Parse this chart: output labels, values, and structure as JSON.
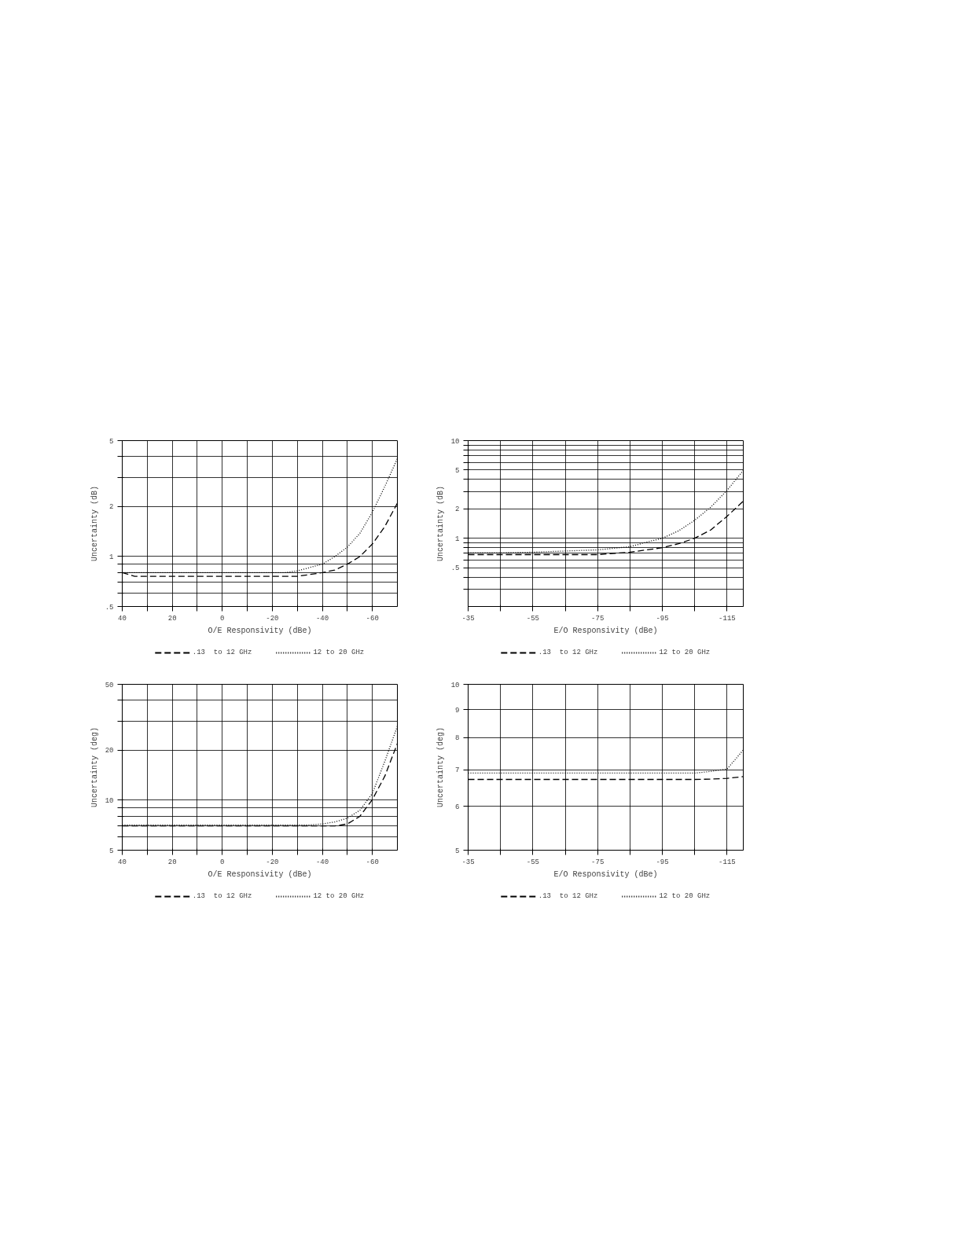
{
  "chart_data": [
    {
      "type": "line",
      "xlabel": "O/E Responsivity (dBe)",
      "ylabel": "Uncertainty (dB)",
      "log": "y",
      "grid": true,
      "legend": "bottom",
      "xlim": [
        40,
        -70
      ],
      "xticks": [
        40,
        {
          "value": 30,
          "label": null
        },
        20,
        {
          "value": 10,
          "label": null
        },
        0,
        {
          "value": -10,
          "label": null
        },
        -20,
        {
          "value": -30,
          "label": null
        },
        -40,
        {
          "value": -50,
          "label": null
        },
        -60
      ],
      "ylim": [
        0.5,
        5
      ],
      "yticks": [
        {
          "value": 0.5,
          "label": ".5"
        },
        {
          "value": 0.6,
          "label": null
        },
        {
          "value": 0.7,
          "label": null
        },
        {
          "value": 0.8,
          "label": null
        },
        {
          "value": 0.9,
          "label": null
        },
        1,
        2,
        {
          "value": 3,
          "label": null
        },
        {
          "value": 4,
          "label": null
        },
        5
      ],
      "series": [
        {
          "name": ".13  to 12 GHz",
          "color": "#000000",
          "line_style": "dashed",
          "x": [
            40,
            35,
            30,
            20,
            10,
            0,
            -10,
            -20,
            -30,
            -40,
            -45,
            -50,
            -55,
            -60,
            -65,
            -70
          ],
          "values": [
            0.8,
            0.76,
            0.76,
            0.76,
            0.76,
            0.76,
            0.76,
            0.76,
            0.76,
            0.8,
            0.83,
            0.9,
            1.0,
            1.19,
            1.52,
            2.1
          ]
        },
        {
          "name": "12 to 20 GHz",
          "color": "#000000",
          "line_style": "dotted",
          "x": [
            40,
            30,
            20,
            10,
            0,
            -10,
            -20,
            -25,
            -30,
            -40,
            -45,
            -50,
            -55,
            -60,
            -65,
            -70
          ],
          "values": [
            0.8,
            0.8,
            0.8,
            0.8,
            0.8,
            0.8,
            0.8,
            0.8,
            0.82,
            0.9,
            1.0,
            1.14,
            1.38,
            1.85,
            2.65,
            3.9
          ]
        }
      ]
    },
    {
      "type": "line",
      "xlabel": "E/O Responsivity (dBe)",
      "ylabel": "Uncertainty (dB)",
      "log": "y",
      "grid": true,
      "legend": "bottom",
      "xlim": [
        -35,
        -120
      ],
      "xticks": [
        -35,
        {
          "value": -45,
          "label": null
        },
        -55,
        {
          "value": -65,
          "label": null
        },
        -75,
        {
          "value": -85,
          "label": null
        },
        -95,
        {
          "value": -105,
          "label": null
        },
        -115
      ],
      "ylim": [
        0.2,
        10
      ],
      "yticks": [
        {
          "value": 0.3,
          "label": null
        },
        {
          "value": 0.4,
          "label": null
        },
        {
          "value": 0.5,
          "label": ".5"
        },
        {
          "value": 0.6,
          "label": null
        },
        {
          "value": 0.7,
          "label": null
        },
        {
          "value": 0.8,
          "label": null
        },
        {
          "value": 0.9,
          "label": null
        },
        1,
        2,
        {
          "value": 3,
          "label": null
        },
        {
          "value": 4,
          "label": null
        },
        5,
        {
          "value": 6,
          "label": null
        },
        {
          "value": 7,
          "label": null
        },
        {
          "value": 8,
          "label": null
        },
        {
          "value": 9,
          "label": null
        },
        10
      ],
      "series": [
        {
          "name": ".13  to 12 GHz",
          "color": "#000000",
          "line_style": "dashed",
          "x": [
            -35,
            -45,
            -55,
            -65,
            -75,
            -85,
            -95,
            -100,
            -105,
            -110,
            -115,
            -120
          ],
          "values": [
            0.68,
            0.68,
            0.68,
            0.68,
            0.68,
            0.72,
            0.8,
            0.88,
            1.0,
            1.22,
            1.68,
            2.4
          ]
        },
        {
          "name": "12 to 20 GHz",
          "color": "#000000",
          "line_style": "dotted",
          "x": [
            -35,
            -45,
            -55,
            -65,
            -75,
            -85,
            -90,
            -95,
            -100,
            -105,
            -110,
            -115,
            -120
          ],
          "values": [
            0.71,
            0.71,
            0.72,
            0.74,
            0.76,
            0.82,
            0.91,
            1.0,
            1.19,
            1.53,
            2.09,
            3.1,
            4.95
          ]
        }
      ]
    },
    {
      "type": "line",
      "xlabel": "O/E Responsivity (dBe)",
      "ylabel": "Uncertainty (deg)",
      "log": "y",
      "grid": true,
      "legend": "bottom",
      "xlim": [
        40,
        -70
      ],
      "xticks": [
        40,
        {
          "value": 30,
          "label": null
        },
        20,
        {
          "value": 10,
          "label": null
        },
        0,
        {
          "value": -10,
          "label": null
        },
        -20,
        {
          "value": -30,
          "label": null
        },
        -40,
        {
          "value": -50,
          "label": null
        },
        -60
      ],
      "ylim": [
        5,
        50
      ],
      "yticks": [
        5,
        {
          "value": 6,
          "label": null
        },
        {
          "value": 7,
          "label": null
        },
        {
          "value": 8,
          "label": null
        },
        {
          "value": 9,
          "label": null
        },
        10,
        20,
        {
          "value": 30,
          "label": null
        },
        {
          "value": 40,
          "label": null
        },
        50
      ],
      "series": [
        {
          "name": ".13  to 12 GHz",
          "color": "#000000",
          "line_style": "dashed",
          "x": [
            40,
            30,
            20,
            10,
            0,
            -10,
            -20,
            -30,
            -40,
            -45,
            -50,
            -55,
            -60,
            -65,
            -70
          ],
          "values": [
            7.0,
            7.0,
            7.0,
            7.0,
            7.0,
            7.0,
            7.0,
            7.0,
            7.0,
            7.0,
            7.2,
            8.0,
            10.1,
            14.0,
            22
          ]
        },
        {
          "name": "12 to 20 GHz",
          "color": "#000000",
          "line_style": "dotted",
          "x": [
            40,
            30,
            20,
            10,
            0,
            -10,
            -20,
            -30,
            -35,
            -40,
            -45,
            -50,
            -55,
            -60,
            -65,
            -70
          ],
          "values": [
            7.1,
            7.1,
            7.1,
            7.1,
            7.1,
            7.1,
            7.1,
            7.1,
            7.1,
            7.2,
            7.4,
            7.8,
            8.7,
            11,
            17.2,
            28
          ]
        }
      ]
    },
    {
      "type": "line",
      "xlabel": "E/O Responsivity (dBe)",
      "ylabel": "Uncertainty (deg)",
      "log": "y",
      "grid": true,
      "legend": "bottom",
      "xlim": [
        -35,
        -120
      ],
      "xticks": [
        -35,
        {
          "value": -45,
          "label": null
        },
        -55,
        {
          "value": -65,
          "label": null
        },
        -75,
        {
          "value": -85,
          "label": null
        },
        -95,
        {
          "value": -105,
          "label": null
        },
        -115
      ],
      "ylim": [
        5,
        10
      ],
      "yticks": [
        5,
        6,
        7,
        8,
        9,
        10
      ],
      "series": [
        {
          "name": ".13  to 12 GHz",
          "color": "#000000",
          "line_style": "dashed",
          "x": [
            -35,
            -55,
            -75,
            -95,
            -105,
            -110,
            -115,
            -120
          ],
          "values": [
            6.72,
            6.72,
            6.72,
            6.72,
            6.72,
            6.73,
            6.75,
            6.8
          ]
        },
        {
          "name": "12 to 20 GHz",
          "color": "#000000",
          "line_style": "dotted",
          "x": [
            -35,
            -55,
            -75,
            -95,
            -105,
            -110,
            -115,
            -120
          ],
          "values": [
            6.9,
            6.9,
            6.9,
            6.9,
            6.9,
            6.95,
            7.02,
            7.6
          ]
        }
      ]
    }
  ]
}
